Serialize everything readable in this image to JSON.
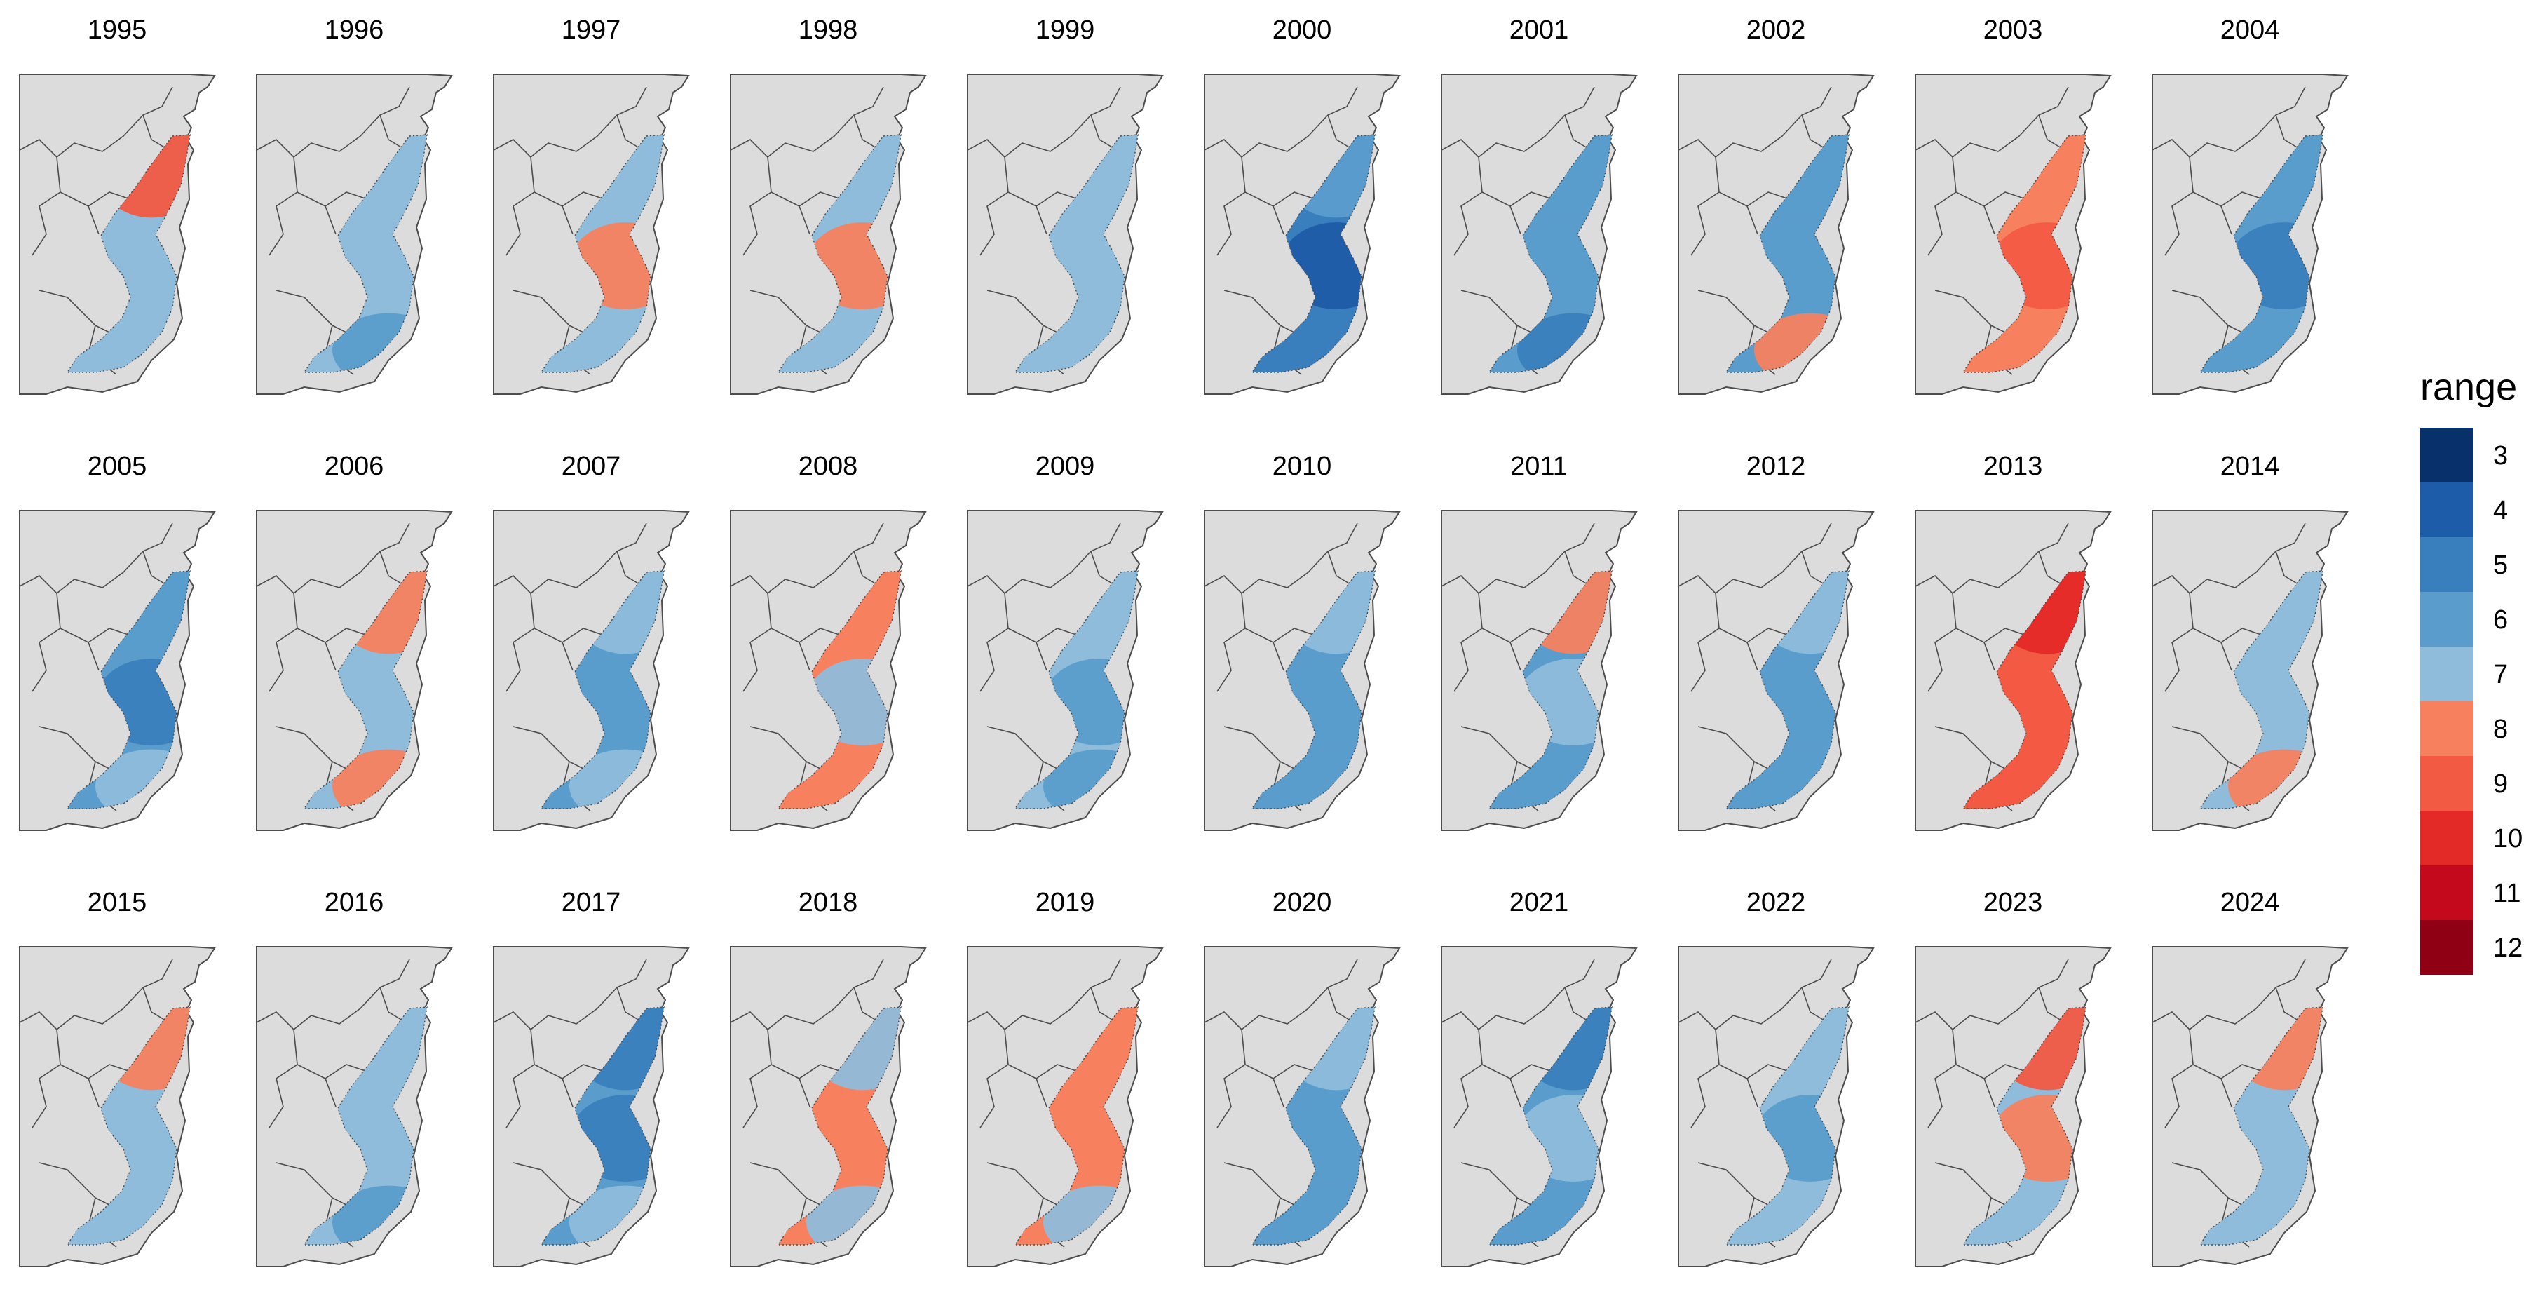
{
  "panels": [
    {
      "year": "1995",
      "dominant": 7,
      "north": 9,
      "mid": 7,
      "south": 7
    },
    {
      "year": "1996",
      "dominant": 7,
      "north": 7,
      "mid": 7,
      "south": 6
    },
    {
      "year": "1997",
      "dominant": 7,
      "north": 7,
      "mid": 8,
      "south": 7
    },
    {
      "year": "1998",
      "dominant": 7,
      "north": 7,
      "mid": 8,
      "south": 7
    },
    {
      "year": "1999",
      "dominant": 7,
      "north": 7,
      "mid": 7,
      "south": 7
    },
    {
      "year": "2000",
      "dominant": 5,
      "north": 6,
      "mid": 4,
      "south": 5
    },
    {
      "year": "2001",
      "dominant": 6,
      "north": 6,
      "mid": 6,
      "south": 5
    },
    {
      "year": "2002",
      "dominant": 6,
      "north": 6,
      "mid": 6,
      "south": 8
    },
    {
      "year": "2003",
      "dominant": 8,
      "north": 8,
      "mid": 9,
      "south": 8
    },
    {
      "year": "2004",
      "dominant": 6,
      "north": 6,
      "mid": 5,
      "south": 6
    },
    {
      "year": "2005",
      "dominant": 6,
      "north": 6,
      "mid": 5,
      "south": 7
    },
    {
      "year": "2006",
      "dominant": 7,
      "north": 8,
      "mid": 7,
      "south": 8
    },
    {
      "year": "2007",
      "dominant": 6,
      "north": 7,
      "mid": 6,
      "south": 7
    },
    {
      "year": "2008",
      "dominant": 8,
      "north": 8,
      "mid": 7,
      "south": 8
    },
    {
      "year": "2009",
      "dominant": 7,
      "north": 7,
      "mid": 6,
      "south": 6
    },
    {
      "year": "2010",
      "dominant": 6,
      "north": 7,
      "mid": 6,
      "south": 6
    },
    {
      "year": "2011",
      "dominant": 6,
      "north": 8,
      "mid": 7,
      "south": 6
    },
    {
      "year": "2012",
      "dominant": 6,
      "north": 7,
      "mid": 6,
      "south": 6
    },
    {
      "year": "2013",
      "dominant": 9,
      "north": 10,
      "mid": 9,
      "south": 9
    },
    {
      "year": "2014",
      "dominant": 7,
      "north": 7,
      "mid": 7,
      "south": 8
    },
    {
      "year": "2015",
      "dominant": 7,
      "north": 8,
      "mid": 7,
      "south": 7
    },
    {
      "year": "2016",
      "dominant": 7,
      "north": 7,
      "mid": 7,
      "south": 6
    },
    {
      "year": "2017",
      "dominant": 6,
      "north": 5,
      "mid": 5,
      "south": 7
    },
    {
      "year": "2018",
      "dominant": 8,
      "north": 7,
      "mid": 8,
      "south": 7
    },
    {
      "year": "2019",
      "dominant": 8,
      "north": 8,
      "mid": 8,
      "south": 7
    },
    {
      "year": "2020",
      "dominant": 6,
      "north": 7,
      "mid": 6,
      "south": 6
    },
    {
      "year": "2021",
      "dominant": 6,
      "north": 5,
      "mid": 7,
      "south": 6
    },
    {
      "year": "2022",
      "dominant": 7,
      "north": 7,
      "mid": 6,
      "south": 7
    },
    {
      "year": "2023",
      "dominant": 7,
      "north": 9,
      "mid": 8,
      "south": 7
    },
    {
      "year": "2024",
      "dominant": 7,
      "north": 8,
      "mid": 7,
      "south": 7
    }
  ],
  "legend": {
    "title": "range",
    "items": [
      {
        "label": "3",
        "color": "#08306b"
      },
      {
        "label": "4",
        "color": "#1d5ca8"
      },
      {
        "label": "5",
        "color": "#3a7fbd"
      },
      {
        "label": "6",
        "color": "#5a9dcc"
      },
      {
        "label": "7",
        "color": "#8fbcdb"
      },
      {
        "label": "8",
        "color": "#f7815f"
      },
      {
        "label": "9",
        "color": "#f35a43"
      },
      {
        "label": "10",
        "color": "#e42a27"
      },
      {
        "label": "11",
        "color": "#c4091c"
      },
      {
        "label": "12",
        "color": "#8f0014"
      }
    ]
  },
  "colors": {
    "land": "#dcdcdc",
    "outline": "#4d4d4d"
  }
}
